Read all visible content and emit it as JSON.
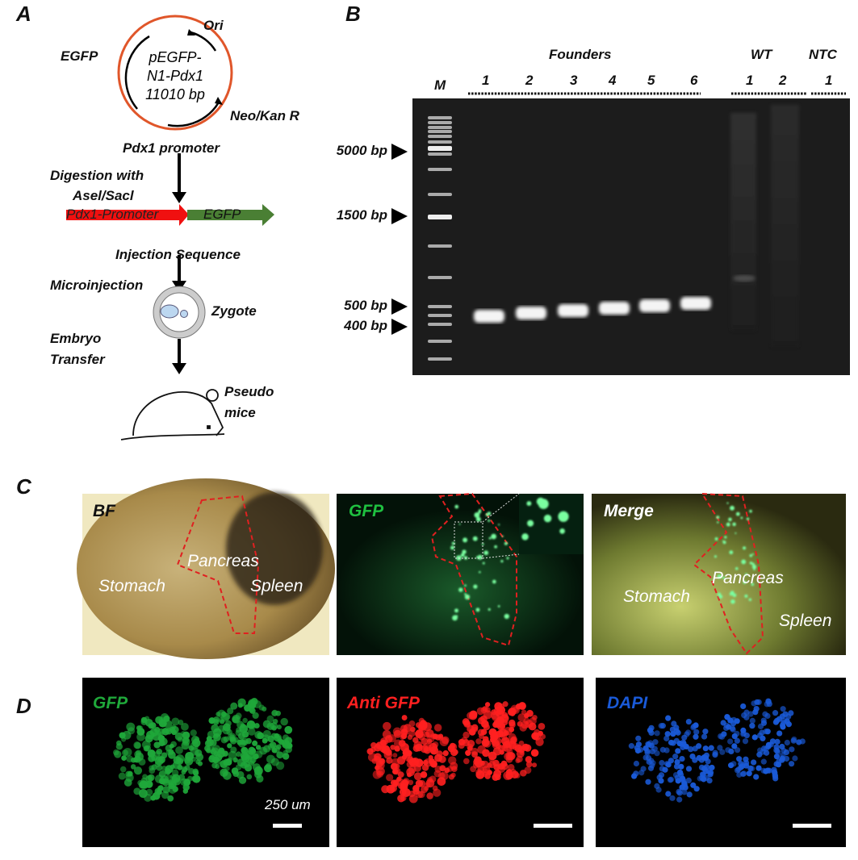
{
  "panel_labels": [
    "A",
    "B",
    "C",
    "D"
  ],
  "panel_a": {
    "plasmid_name_lines": [
      "pEGFP-",
      "N1-Pdx1",
      "11010 bp"
    ],
    "features": {
      "ori": "Ori",
      "egfp": "EGFP",
      "neo": "Neo/Kan R",
      "promoter": "Pdx1 promoter"
    },
    "step1": [
      "Digestion with",
      "Asel/Sacl"
    ],
    "construct": {
      "promoter": "Pdx1-Promoter",
      "egfp": "EGFP",
      "caption": "Injection Sequence"
    },
    "step2": "Microinjection",
    "zygote": "Zygote",
    "step3": [
      "Embryo",
      "Transfer"
    ],
    "mice": [
      "Pseudo",
      "mice"
    ],
    "colors": {
      "plasmid": "#e0562a",
      "promoter": "#f01010",
      "egfp": "#4a7f34"
    }
  },
  "panel_b": {
    "groups": [
      {
        "label": "Founders",
        "lanes": [
          "1",
          "2",
          "3",
          "4",
          "5",
          "6"
        ]
      },
      {
        "label": "WT",
        "lanes": [
          "1",
          "2"
        ]
      },
      {
        "label": "NTC",
        "lanes": [
          "1"
        ]
      }
    ],
    "marker_lane": "M",
    "size_markers": [
      "5000 bp",
      "1500 bp",
      "500 bp",
      "400 bp"
    ]
  },
  "panel_c": {
    "images": [
      {
        "channel": "BF",
        "labels": [
          "Stomach",
          "Pancreas",
          "Spleen"
        ]
      },
      {
        "channel": "GFP",
        "labels": []
      },
      {
        "channel": "Merge",
        "labels": [
          "Stomach",
          "Pancreas",
          "Spleen"
        ]
      }
    ]
  },
  "panel_d": {
    "images": [
      {
        "channel": "GFP",
        "color": "#1fa83a"
      },
      {
        "channel": "Anti GFP",
        "color": "#ff2020"
      },
      {
        "channel": "DAPI",
        "color": "#1a5ad8"
      }
    ],
    "scale_bar": "250 um"
  }
}
